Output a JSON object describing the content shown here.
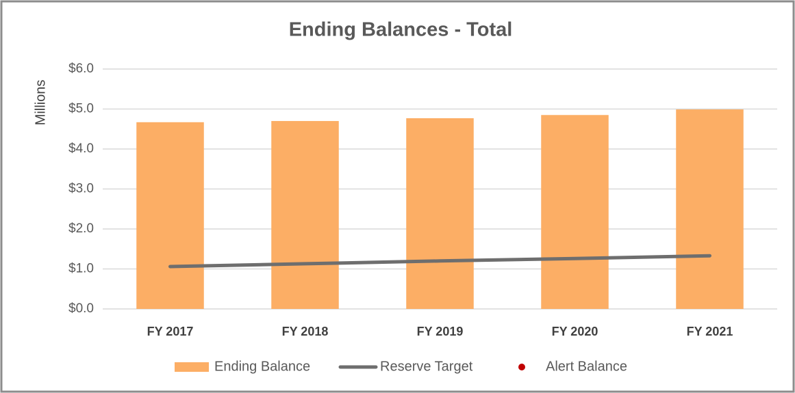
{
  "chart_data": {
    "type": "bar",
    "title": "Ending Balances - Total",
    "y_label": "Millions",
    "categories": [
      "FY 2017",
      "FY 2018",
      "FY 2019",
      "FY 2020",
      "FY 2021"
    ],
    "series": [
      {
        "name": "Ending Balance",
        "type": "bar",
        "color": "#fcae65",
        "values": [
          4.67,
          4.7,
          4.77,
          4.85,
          4.99
        ]
      },
      {
        "name": "Reserve Target",
        "type": "line",
        "color": "#6e6e6e",
        "values": [
          1.06,
          1.13,
          1.2,
          1.26,
          1.33
        ]
      },
      {
        "name": "Alert Balance",
        "type": "scatter",
        "color": "#c00000",
        "values": [
          null,
          null,
          null,
          null,
          null
        ]
      }
    ],
    "ylim": [
      0,
      6
    ],
    "yticks": [
      {
        "value": 0,
        "label": "$0.0"
      },
      {
        "value": 1,
        "label": "$1.0"
      },
      {
        "value": 2,
        "label": "$2.0"
      },
      {
        "value": 3,
        "label": "$3.0"
      },
      {
        "value": 4,
        "label": "$4.0"
      },
      {
        "value": 5,
        "label": "$5.0"
      },
      {
        "value": 6,
        "label": "$6.0"
      }
    ],
    "grid": true,
    "legend": "bottom"
  }
}
